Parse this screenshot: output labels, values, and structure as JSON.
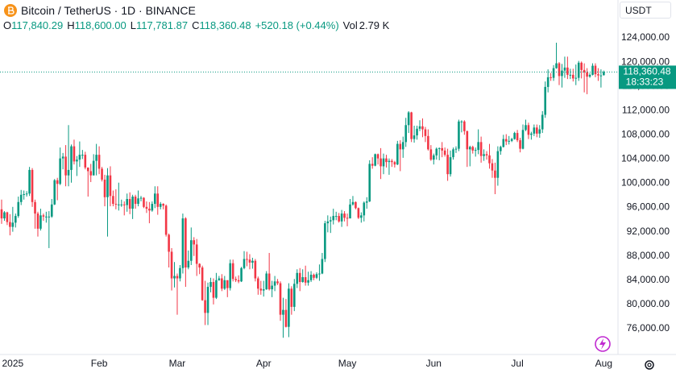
{
  "header": {
    "title": "Bitcoin / TetherUS · 1D · BINANCE",
    "ohlc": [
      {
        "key": "O",
        "value": "117,840.29"
      },
      {
        "key": "H",
        "value": "118,600.00"
      },
      {
        "key": "L",
        "value": "117,781.87"
      },
      {
        "key": "C",
        "value": "118,360.48"
      }
    ],
    "change": "+520.18 (+0.44%)",
    "volume_key": "Vol",
    "volume": "2.79 K"
  },
  "currency": "USDT",
  "chart_data": {
    "type": "candlestick",
    "up_color": "#089981",
    "down_color": "#f23645",
    "ylim": [
      71740,
      130250
    ],
    "yticks": [
      {
        "value": 76000,
        "label": "76,000.00"
      },
      {
        "value": 80000,
        "label": "80,000.00"
      },
      {
        "value": 84000,
        "label": "84,000.00"
      },
      {
        "value": 88000,
        "label": "88,000.00"
      },
      {
        "value": 92000,
        "label": "92,000.00"
      },
      {
        "value": 96000,
        "label": "96,000.00"
      },
      {
        "value": 100000,
        "label": "100,000.00"
      },
      {
        "value": 104000,
        "label": "104,000.00"
      },
      {
        "value": 108000,
        "label": "108,000.00"
      },
      {
        "value": 112000,
        "label": "112,000.00"
      },
      {
        "value": 116000,
        "label": "116,000.00"
      },
      {
        "value": 120000,
        "label": "120,000.00"
      },
      {
        "value": 124000,
        "label": "124,000.00"
      }
    ],
    "last_price": {
      "value": 118360.48,
      "label": "118,360.48"
    },
    "countdown": "18:33:23",
    "categories": [
      null,
      null,
      null,
      null,
      "2025",
      null,
      null,
      null,
      null,
      null,
      null,
      null,
      null,
      null,
      null,
      null,
      null,
      null,
      null,
      null,
      null,
      null,
      null,
      null,
      null,
      null,
      null,
      null,
      null,
      null,
      null,
      null,
      null,
      null,
      null,
      "Feb",
      null,
      null,
      null,
      null,
      null,
      null,
      null,
      null,
      null,
      null,
      null,
      null,
      null,
      null,
      null,
      null,
      null,
      null,
      null,
      null,
      null,
      null,
      null,
      null,
      null,
      null,
      null,
      "Mar",
      null,
      null,
      null,
      null,
      null,
      null,
      null,
      null,
      null,
      null,
      null,
      null,
      null,
      null,
      null,
      null,
      null,
      null,
      null,
      null,
      null,
      null,
      null,
      null,
      null,
      null,
      null,
      null,
      null,
      null,
      "Apr",
      null,
      null,
      null,
      null,
      null,
      null,
      null,
      null,
      null,
      null,
      null,
      null,
      null,
      null,
      null,
      null,
      null,
      null,
      null,
      null,
      null,
      null,
      null,
      null,
      null,
      null,
      null,
      null,
      null,
      "May",
      null,
      null,
      null,
      null,
      null,
      null,
      null,
      null,
      null,
      null,
      null,
      null,
      null,
      null,
      null,
      null,
      null,
      null,
      null,
      null,
      null,
      null,
      null,
      null,
      null,
      null,
      null,
      null,
      null,
      null,
      "Jun",
      null,
      null,
      null,
      null,
      null,
      null,
      null,
      null,
      null,
      null,
      null,
      null,
      null,
      null,
      null,
      null,
      null,
      null,
      null,
      null,
      null,
      null,
      null,
      null,
      null,
      null,
      null,
      null,
      null,
      "Jul",
      null,
      null,
      null,
      null,
      null,
      null,
      null,
      null,
      null,
      null,
      null,
      null,
      null,
      null,
      null,
      null,
      null,
      null,
      null,
      null,
      null,
      null,
      null,
      null,
      null,
      null,
      null,
      null,
      null,
      null,
      "Aug"
    ],
    "open": [
      95700,
      94200,
      95200,
      93600,
      92800,
      93500,
      94600,
      96900,
      98100,
      98200,
      98300,
      102200,
      96900,
      95000,
      92500,
      94700,
      94500,
      94500,
      94500,
      96500,
      100500,
      99900,
      104100,
      104400,
      101300,
      102200,
      106100,
      103600,
      103900,
      104700,
      104700,
      102600,
      102000,
      101300,
      103700,
      104700,
      102400,
      100600,
      97700,
      101300,
      97900,
      96600,
      96500,
      96500,
      96500,
      96400,
      97400,
      95800,
      97800,
      96600,
      97500,
      97600,
      96100,
      95800,
      95500,
      96600,
      98300,
      96100,
      96600,
      96300,
      91500,
      88700,
      84300,
      84700,
      84300,
      86000,
      94200,
      86100,
      87200,
      90600,
      89900,
      86700,
      86100,
      80700,
      78600,
      82900,
      83700,
      81100,
      84000,
      84300,
      82600,
      84000,
      82700,
      86800,
      84200,
      84000,
      83800,
      86000,
      87500,
      87400,
      86900,
      87200,
      84300,
      82600,
      82300,
      82500,
      85100,
      82500,
      83100,
      83800,
      83500,
      78300,
      79100,
      76300,
      82600,
      79600,
      83400,
      85200,
      83700,
      84500,
      83600,
      84000,
      84900,
      84400,
      85000,
      85100,
      87500,
      93400,
      93700,
      93900,
      94600,
      94600,
      93700,
      95000,
      94300,
      94200,
      96500,
      96900,
      95900,
      94300,
      94700,
      96800,
      97000,
      103200,
      102900,
      104800,
      104100,
      102800,
      104100,
      103500,
      103700,
      103500,
      103100,
      106500,
      105600,
      106800,
      109600,
      111700,
      107300,
      107900,
      109000,
      109400,
      108900,
      107800,
      105600,
      103900,
      104600,
      105700,
      105800,
      105400,
      104700,
      101500,
      104300,
      105600,
      105700,
      110200,
      110200,
      108600,
      105600,
      106000,
      105400,
      105500,
      106800,
      104500,
      104800,
      104600,
      103300,
      102100,
      100900,
      105300,
      106000,
      107300,
      106900,
      107000,
      107300,
      108300,
      107100,
      105700,
      108800,
      109600,
      108000,
      108200,
      109200,
      108200,
      108900,
      111300,
      115900,
      117500,
      117400,
      119000,
      119800,
      117700,
      118600,
      119100,
      117900,
      117900,
      117300,
      117400,
      119900,
      118700,
      118300,
      117600,
      117900,
      119400,
      118000,
      117800,
      117840.29
    ],
    "high": [
      97300,
      95400,
      95300,
      94900,
      96100,
      95000,
      97800,
      98900,
      98800,
      98700,
      102700,
      102500,
      97300,
      95300,
      95800,
      95000,
      95300,
      95400,
      97400,
      100700,
      100900,
      105900,
      105000,
      106300,
      109600,
      106400,
      107200,
      104500,
      106900,
      105500,
      105200,
      102600,
      103200,
      104800,
      106500,
      106100,
      102700,
      101400,
      102500,
      102800,
      98800,
      99000,
      100100,
      97300,
      97000,
      98300,
      98500,
      98100,
      98100,
      98800,
      97900,
      97700,
      97000,
      96900,
      97000,
      99500,
      99500,
      96900,
      96700,
      96500,
      91700,
      89300,
      87000,
      85100,
      86500,
      95000,
      94400,
      88900,
      92700,
      91100,
      90800,
      86800,
      86400,
      83900,
      83600,
      84400,
      84300,
      85200,
      84700,
      85000,
      84700,
      84000,
      87400,
      87400,
      84600,
      84800,
      86200,
      88800,
      88700,
      88300,
      87700,
      87500,
      84600,
      83900,
      83900,
      85500,
      88500,
      83900,
      84700,
      84200,
      83800,
      81100,
      80900,
      83500,
      83000,
      84200,
      85800,
      86000,
      85800,
      86400,
      85400,
      85500,
      85100,
      85300,
      86600,
      88500,
      93800,
      94700,
      94500,
      95800,
      95300,
      95100,
      95600,
      95400,
      95000,
      97400,
      97900,
      97000,
      96000,
      95200,
      97000,
      97700,
      103800,
      104300,
      104900,
      104900,
      105800,
      104900,
      104700,
      104100,
      104000,
      103700,
      107000,
      107100,
      107700,
      110800,
      111900,
      111800,
      109500,
      109500,
      110400,
      110700,
      109300,
      108900,
      106300,
      104900,
      105900,
      105900,
      106800,
      105900,
      105700,
      105400,
      105900,
      106100,
      110500,
      110400,
      110400,
      108700,
      106200,
      106200,
      105900,
      108900,
      107700,
      105600,
      105300,
      106500,
      104000,
      103400,
      106100,
      106200,
      108000,
      108100,
      107800,
      107500,
      108500,
      108800,
      107500,
      109700,
      110500,
      110000,
      108500,
      109700,
      109700,
      109600,
      111900,
      116800,
      118800,
      118200,
      119500,
      123200,
      120000,
      119700,
      120900,
      120900,
      118900,
      118900,
      119600,
      120200,
      120100,
      119800,
      119000,
      118200,
      119800,
      119800,
      119000,
      118800,
      118600
    ],
    "low": [
      93300,
      93800,
      93100,
      91400,
      92000,
      92700,
      94300,
      96400,
      97300,
      97800,
      97900,
      96100,
      92500,
      91200,
      92200,
      93800,
      93500,
      89300,
      94300,
      96400,
      97200,
      99700,
      102300,
      99500,
      99500,
      100100,
      103100,
      101200,
      102700,
      104000,
      102300,
      97800,
      100200,
      101300,
      101300,
      101500,
      100300,
      96200,
      91200,
      96200,
      96200,
      95700,
      95500,
      96100,
      94700,
      95300,
      94900,
      94100,
      95800,
      96200,
      97000,
      95900,
      95100,
      93400,
      95300,
      95900,
      94800,
      95700,
      95700,
      91200,
      86100,
      82300,
      82800,
      78300,
      83800,
      85100,
      82900,
      85800,
      86500,
      88000,
      84700,
      85000,
      80600,
      76600,
      76600,
      82000,
      80000,
      80900,
      83900,
      82200,
      82400,
      81200,
      82300,
      83800,
      83700,
      83500,
      83700,
      85800,
      86300,
      85800,
      85900,
      83800,
      81600,
      81600,
      81300,
      82400,
      82300,
      81200,
      82200,
      83200,
      77300,
      74500,
      76200,
      74600,
      78300,
      78900,
      82700,
      82200,
      83600,
      83100,
      83100,
      83700,
      84000,
      84200,
      83900,
      85000,
      87000,
      91900,
      91800,
      93200,
      93900,
      93500,
      92800,
      93700,
      92900,
      94200,
      96300,
      95700,
      94100,
      93500,
      93700,
      95800,
      96900,
      102400,
      102800,
      103100,
      100700,
      101500,
      102600,
      101400,
      102700,
      102600,
      103000,
      102000,
      104200,
      106000,
      108300,
      106800,
      106700,
      107200,
      108600,
      107600,
      106800,
      105400,
      103700,
      103100,
      103900,
      103800,
      104300,
      104400,
      100400,
      101100,
      103900,
      105000,
      105300,
      108400,
      108000,
      102700,
      102800,
      104900,
      104400,
      104800,
      103400,
      103700,
      103900,
      102400,
      100900,
      98200,
      99600,
      104700,
      105900,
      106300,
      106400,
      106800,
      107200,
      106800,
      105100,
      105600,
      108600,
      107300,
      107200,
      107800,
      107600,
      107500,
      108300,
      110800,
      115000,
      116900,
      116900,
      118900,
      116200,
      115800,
      117400,
      117200,
      117200,
      116800,
      116200,
      116900,
      117300,
      115000,
      114700,
      117400,
      117800,
      117500,
      116900,
      115800,
      117781.87
    ],
    "close": [
      94200,
      95200,
      93600,
      92800,
      93500,
      94600,
      96900,
      98100,
      98200,
      98300,
      102200,
      96900,
      95000,
      92500,
      94700,
      94500,
      94500,
      94500,
      96500,
      100500,
      99900,
      104100,
      104400,
      101300,
      102200,
      106100,
      103600,
      103900,
      104700,
      104700,
      102600,
      102000,
      101300,
      103700,
      104700,
      102400,
      100600,
      97700,
      101300,
      97900,
      96600,
      96500,
      96500,
      96500,
      96400,
      97400,
      95800,
      97800,
      96600,
      97500,
      97600,
      96100,
      95800,
      95500,
      96600,
      98300,
      96100,
      96600,
      96300,
      91500,
      88700,
      84300,
      84700,
      84300,
      86000,
      94200,
      86100,
      87200,
      90600,
      89900,
      86700,
      86100,
      80700,
      78600,
      82900,
      83700,
      81100,
      84000,
      84300,
      82600,
      84000,
      82700,
      86800,
      84200,
      84000,
      83800,
      86000,
      87500,
      87400,
      86900,
      87200,
      84300,
      82600,
      82300,
      82500,
      85100,
      82500,
      83100,
      83800,
      83500,
      78300,
      79100,
      76300,
      82600,
      79600,
      83400,
      85200,
      83700,
      84500,
      83600,
      84000,
      84900,
      84400,
      85000,
      85100,
      87500,
      93400,
      93700,
      93900,
      94600,
      94600,
      93700,
      95000,
      94300,
      94200,
      96500,
      96900,
      95900,
      94300,
      94700,
      96800,
      97000,
      103200,
      102900,
      104800,
      104100,
      102800,
      104100,
      103500,
      103700,
      103500,
      103100,
      106500,
      105600,
      106800,
      109600,
      111700,
      107300,
      107900,
      109000,
      109400,
      108900,
      107800,
      105600,
      103900,
      104600,
      105700,
      105800,
      105400,
      104700,
      101500,
      104300,
      105600,
      105700,
      110200,
      110200,
      108600,
      105600,
      106000,
      105400,
      105500,
      106800,
      104500,
      104800,
      104600,
      103300,
      102100,
      100900,
      105300,
      106000,
      107300,
      106900,
      107000,
      107300,
      108300,
      107100,
      105700,
      108800,
      109600,
      108000,
      108200,
      109200,
      108200,
      108900,
      111300,
      115900,
      117500,
      117400,
      119000,
      119800,
      117700,
      118600,
      119100,
      117900,
      117900,
      117300,
      117400,
      119900,
      118700,
      118300,
      117600,
      117900,
      119400,
      118000,
      117800,
      117800,
      118360.48
    ]
  }
}
